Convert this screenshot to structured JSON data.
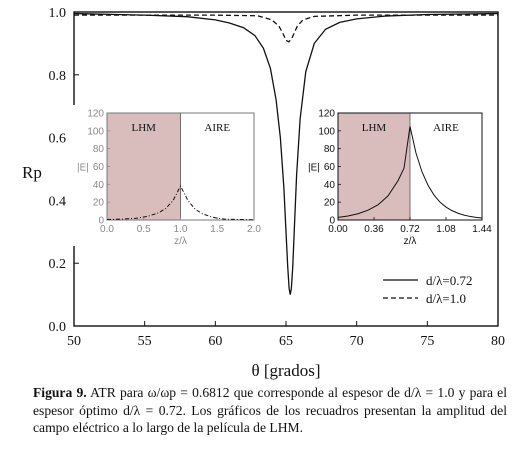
{
  "chart_data": [
    {
      "type": "line",
      "xlabel": "θ [grados]",
      "ylabel": "Rp",
      "xlim": [
        50,
        80
      ],
      "ylim": [
        0.0,
        1.0
      ],
      "xticks": [
        "50",
        "55",
        "60",
        "65",
        "70",
        "75",
        "80"
      ],
      "yticks": [
        "0.0",
        "0.2",
        "0.4",
        "0.6",
        "0.8",
        "1.0"
      ],
      "legend_position": "bottom-right",
      "series": [
        {
          "name": "d/λ=0.72",
          "style": "solid",
          "x": [
            50,
            55,
            58,
            60,
            61,
            62,
            62.8,
            63.4,
            63.9,
            64.3,
            64.6,
            64.85,
            65.0,
            65.12,
            65.22,
            65.3,
            65.38,
            65.48,
            65.6,
            65.75,
            66.0,
            66.4,
            67.0,
            67.8,
            68.8,
            70,
            72,
            75,
            80
          ],
          "y": [
            0.995,
            0.99,
            0.985,
            0.975,
            0.965,
            0.95,
            0.925,
            0.885,
            0.82,
            0.72,
            0.6,
            0.44,
            0.3,
            0.19,
            0.12,
            0.1,
            0.12,
            0.19,
            0.32,
            0.48,
            0.66,
            0.81,
            0.9,
            0.945,
            0.967,
            0.978,
            0.987,
            0.992,
            0.995
          ]
        },
        {
          "name": "d/λ=1.0",
          "style": "dashed",
          "x": [
            50,
            60,
            63,
            64,
            64.5,
            64.8,
            65.0,
            65.2,
            65.4,
            65.6,
            65.8,
            66.2,
            67,
            70,
            80
          ],
          "y": [
            0.99,
            0.99,
            0.988,
            0.975,
            0.955,
            0.93,
            0.91,
            0.905,
            0.915,
            0.935,
            0.955,
            0.975,
            0.986,
            0.99,
            0.99
          ]
        }
      ]
    },
    {
      "type": "area",
      "region_labels": [
        "LHM",
        "AIRE"
      ],
      "ylabel": "|E|",
      "xlabel": "z/λ",
      "xlim": [
        0.0,
        2.0
      ],
      "ylim": [
        0,
        120
      ],
      "xticks": [
        "0.0",
        "0.5",
        "1.0",
        "1.5",
        "2.0"
      ],
      "yticks": [
        "0",
        "20",
        "40",
        "60",
        "80",
        "100",
        "120"
      ],
      "lhm_region": [
        0.0,
        1.0
      ],
      "series": [
        {
          "style": "dashdot",
          "x": [
            0,
            0.2,
            0.4,
            0.55,
            0.7,
            0.8,
            0.9,
            0.95,
            1.0,
            1.05,
            1.1,
            1.2,
            1.3,
            1.4,
            1.5,
            1.6,
            1.8,
            2.0
          ],
          "y": [
            0.5,
            1,
            2,
            4,
            8,
            13,
            22,
            30,
            38,
            30,
            22,
            12,
            7,
            4,
            2,
            1,
            0.5,
            0.2
          ]
        }
      ]
    },
    {
      "type": "area",
      "region_labels": [
        "LHM",
        "AIRE"
      ],
      "ylabel": "|E|",
      "xlabel": "z/λ",
      "xlim": [
        0.0,
        1.44
      ],
      "ylim": [
        0,
        120
      ],
      "xticks": [
        "0.00",
        "0.36",
        "0.72",
        "1.08",
        "1.44"
      ],
      "yticks": [
        "0",
        "20",
        "40",
        "60",
        "80",
        "100",
        "120"
      ],
      "lhm_region": [
        0.0,
        0.72
      ],
      "series": [
        {
          "style": "solid",
          "x": [
            0,
            0.1,
            0.2,
            0.3,
            0.4,
            0.5,
            0.6,
            0.66,
            0.72,
            0.78,
            0.84,
            0.9,
            0.96,
            1.02,
            1.08,
            1.14,
            1.2,
            1.26,
            1.32,
            1.38,
            1.44
          ],
          "y": [
            3,
            4.5,
            7,
            11,
            17,
            27,
            44,
            58,
            105,
            75,
            54,
            39,
            28,
            20,
            14.5,
            10.5,
            7.6,
            5.5,
            4,
            3,
            2.2
          ]
        }
      ]
    }
  ],
  "caption": {
    "label": "Figura 9.",
    "text": "ATR para ω/ωp = 0.6812 que corresponde al espesor de d/λ = 1.0 y para el espesor óptimo d/λ = 0.72. Los gráficos de los recuadros presentan la amplitud del campo eléctrico a lo largo de la película de LHM."
  },
  "colors": {
    "lhm_fill": "#d9bcbc",
    "axis": "#111111",
    "grey_tick": "#8a8a8a"
  }
}
